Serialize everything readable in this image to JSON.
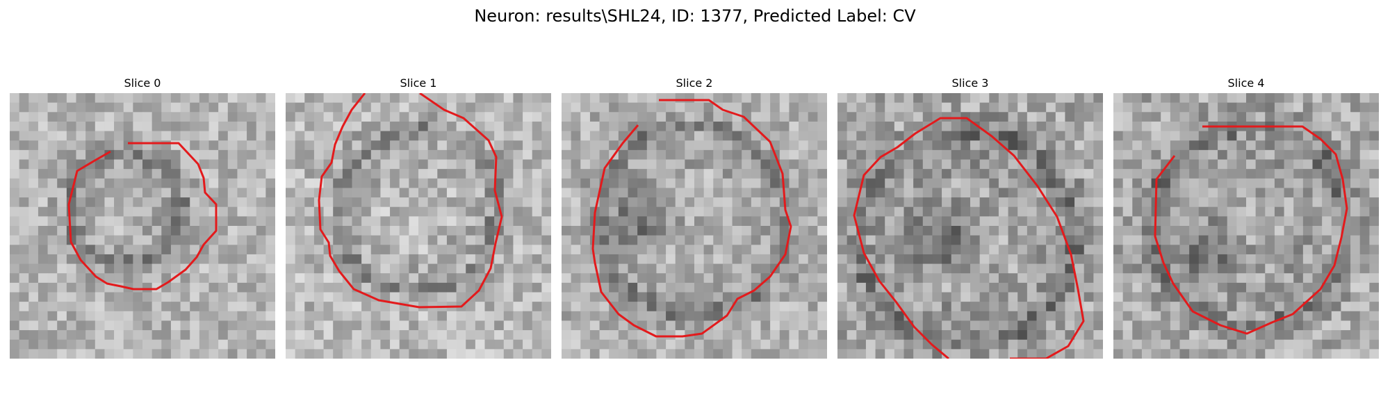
{
  "figure": {
    "title": "Neuron: results\\SHL24, ID: 1377, Predicted Label: CV"
  },
  "panels": [
    {
      "title": "Slice 0",
      "contour_color": "#e31a1c",
      "image": "grayscale microscopy crop of a neuron with red segmentation contour"
    },
    {
      "title": "Slice 1",
      "contour_color": "#e31a1c",
      "image": "grayscale microscopy crop of a neuron with red segmentation contour"
    },
    {
      "title": "Slice 2",
      "contour_color": "#e31a1c",
      "image": "grayscale microscopy crop of a neuron with red segmentation contour"
    },
    {
      "title": "Slice 3",
      "contour_color": "#e31a1c",
      "image": "grayscale microscopy crop of a neuron with red segmentation contour"
    },
    {
      "title": "Slice 4",
      "contour_color": "#e31a1c",
      "image": "grayscale microscopy crop of a neuron with red segmentation contour"
    }
  ]
}
